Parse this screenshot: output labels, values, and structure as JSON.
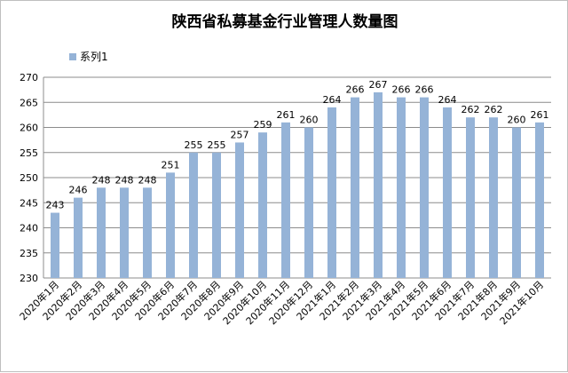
{
  "chart_data": {
    "type": "bar",
    "title": "陕西省私募基金行业管理人数量图",
    "xlabel": "",
    "ylabel": "",
    "ylim": [
      230,
      270
    ],
    "ytick_step": 5,
    "grid": true,
    "legend_position": "top-left",
    "colors": {
      "bar": "#95b3d7",
      "grid": "#8c8c8c"
    },
    "categories": [
      "2020年1月",
      "2020年2月",
      "2020年3月",
      "2020年4月",
      "2020年5月",
      "2020年6月",
      "2020年7月",
      "2020年8月",
      "2020年9月",
      "2020年10月",
      "2020年11月",
      "2020年12月",
      "2021年1月",
      "2021年2月",
      "2021年3月",
      "2021年4月",
      "2021年5月",
      "2021年6月",
      "2021年7月",
      "2021年8月",
      "2021年9月",
      "2021年10月"
    ],
    "series": [
      {
        "name": "系列1",
        "values": [
          243,
          246,
          248,
          248,
          248,
          251,
          255,
          255,
          257,
          259,
          261,
          260,
          264,
          266,
          267,
          266,
          266,
          264,
          262,
          262,
          260,
          261
        ]
      }
    ]
  }
}
